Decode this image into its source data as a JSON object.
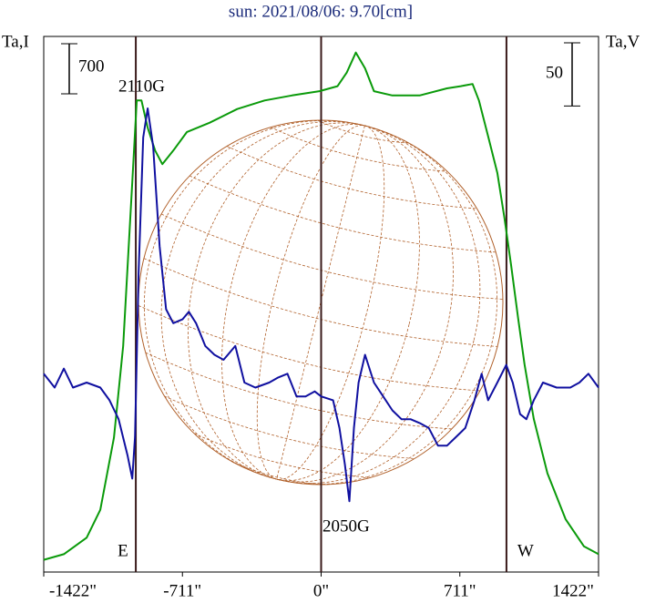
{
  "chart_data": {
    "type": "line",
    "title": "sun: 2021/08/06: 9.70[cm]",
    "xlim": [
      -1422,
      1422
    ],
    "xticks": [
      {
        "value": -1422,
        "label": "-1422\""
      },
      {
        "value": -711,
        "label": "-711\""
      },
      {
        "value": 0,
        "label": "0\""
      },
      {
        "value": 711,
        "label": "711\""
      },
      {
        "value": 1422,
        "label": "1422\""
      }
    ],
    "ylim": [
      0,
      7485
    ],
    "y2lim": [
      -150,
      274
    ],
    "vlines": [
      -950,
      0,
      950
    ],
    "east_label": "E",
    "west_label": "W",
    "annotations": [
      "2110G",
      "2050G"
    ],
    "scale_bars": [
      {
        "value": 700,
        "axis": "y"
      },
      {
        "value": 50,
        "axis": "y2"
      }
    ],
    "series": [
      {
        "name": "Ta,I",
        "color": "#0a9a0a",
        "axis": "y",
        "x": [
          -1422,
          -1319,
          -1202,
          -1132,
          -1062,
          -1015,
          -968,
          -945,
          -921,
          -889,
          -851,
          -814,
          -758,
          -688,
          -571,
          -430,
          -290,
          -150,
          -9,
          84,
          131,
          178,
          225,
          271,
          365,
          505,
          645,
          716,
          776,
          809,
          856,
          903,
          940,
          973,
          1010,
          1043,
          1090,
          1160,
          1253,
          1347,
          1422
        ],
        "values": [
          170,
          250,
          480,
          870,
          1880,
          3160,
          5450,
          6590,
          6590,
          6210,
          5890,
          5700,
          5890,
          6150,
          6280,
          6470,
          6590,
          6660,
          6720,
          6790,
          6980,
          7260,
          7040,
          6720,
          6660,
          6660,
          6760,
          6790,
          6820,
          6590,
          6090,
          5580,
          4940,
          4300,
          3540,
          2900,
          2140,
          1380,
          740,
          360,
          250
        ]
      },
      {
        "name": "Ta,V",
        "color": "#1010a0",
        "axis": "y2",
        "x": [
          -1422,
          -1366,
          -1319,
          -1272,
          -1202,
          -1132,
          -1085,
          -1038,
          -992,
          -968,
          -954,
          -936,
          -912,
          -889,
          -861,
          -828,
          -795,
          -758,
          -711,
          -678,
          -641,
          -594,
          -547,
          -500,
          -440,
          -393,
          -337,
          -266,
          -220,
          -173,
          -126,
          -80,
          -33,
          0,
          61,
          94,
          122,
          145,
          168,
          192,
          225,
          271,
          318,
          365,
          412,
          458,
          505,
          552,
          599,
          645,
          692,
          739,
          786,
          823,
          856,
          903,
          949,
          982,
          1020,
          1052,
          1090,
          1137,
          1207,
          1277,
          1324,
          1370,
          1422
        ],
        "values": [
          7,
          -4,
          11,
          -4,
          0,
          -4,
          -14,
          -29,
          -58,
          -76,
          -43,
          86,
          194,
          217,
          187,
          108,
          58,
          47,
          50,
          56,
          47,
          29,
          22,
          18,
          29,
          0,
          -4,
          0,
          4,
          7,
          -11,
          -11,
          -7,
          -11,
          -14,
          -36,
          -65,
          -94,
          -36,
          0,
          22,
          0,
          -11,
          -22,
          -29,
          -29,
          -32,
          -36,
          -50,
          -50,
          -43,
          -36,
          -14,
          7,
          -14,
          0,
          14,
          0,
          -25,
          -29,
          -14,
          0,
          -4,
          -4,
          0,
          7,
          -4
        ]
      }
    ]
  }
}
